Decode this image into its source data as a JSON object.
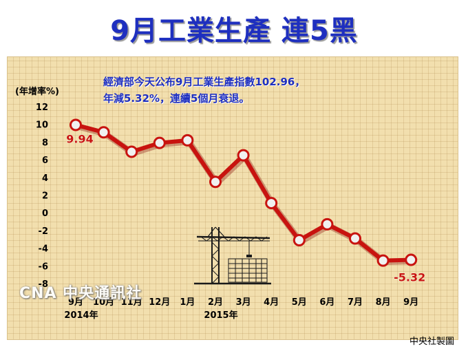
{
  "headline": "9月工業生產 連5黑",
  "note_line1": "經濟部今天公布9月工業生產指數102.96，",
  "note_line2": "年減5.32%，連續5個月衰退。",
  "credit": "中央社製圖",
  "watermark": "CNA 中央通訊社",
  "colors": {
    "headline": "#1e2fbf",
    "line": "#c8130f",
    "line_glow": "#8a0e0a",
    "marker_fill": "#f0f0f0",
    "label": "#c8130f"
  },
  "icon": "construction-crane-building-icon",
  "chart_data": {
    "type": "line",
    "title": "",
    "ylabel": "(年增率%)",
    "ylim": [
      -8,
      12
    ],
    "yticks": [
      12,
      10,
      8,
      6,
      4,
      2,
      0,
      -2,
      -4,
      -6,
      -8
    ],
    "categories": [
      "9月",
      "10月",
      "11月",
      "12月",
      "1月",
      "2月",
      "3月",
      "4月",
      "5月",
      "6月",
      "7月",
      "8月",
      "9月"
    ],
    "year_labels": [
      {
        "category_index": 0,
        "text": "2014年"
      },
      {
        "category_index": 5,
        "text": "2015年"
      }
    ],
    "series": [
      {
        "values": [
          9.94,
          9.1,
          6.9,
          7.9,
          8.2,
          3.5,
          6.5,
          1.1,
          -3.1,
          -1.3,
          -2.9,
          -5.4,
          -5.32
        ]
      }
    ],
    "annotations": [
      {
        "index": 0,
        "text": "9.94"
      },
      {
        "index": 12,
        "text": "-5.32"
      }
    ],
    "grid": false,
    "legend": "none"
  }
}
